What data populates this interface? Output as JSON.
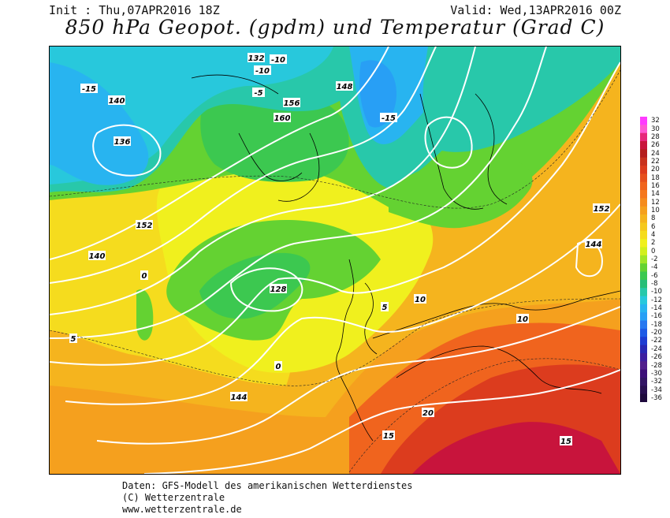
{
  "header": {
    "init": "Init : Thu,07APR2016 18Z",
    "valid": "Valid: Wed,13APR2016 00Z",
    "title": "850 hPa Geopot. (gpdm) und Temperatur (Grad C)"
  },
  "scale": {
    "labels": [
      "32",
      "30",
      "28",
      "26",
      "24",
      "22",
      "20",
      "18",
      "16",
      "14",
      "12",
      "10",
      "8",
      "6",
      "4",
      "2",
      "0",
      "-2",
      "-4",
      "-6",
      "-8",
      "-10",
      "-12",
      "-14",
      "-16",
      "-18",
      "-20",
      "-22",
      "-24",
      "-26",
      "-28",
      "-30",
      "-32",
      "-34",
      "-36"
    ],
    "colors": [
      "#ff3cff",
      "#ff5ad2",
      "#e6287a",
      "#c8143c",
      "#b41e1e",
      "#c8321e",
      "#dc3c1e",
      "#e6501e",
      "#f0641e",
      "#f5781e",
      "#f58c1e",
      "#f5a01e",
      "#f5b41e",
      "#f5c81e",
      "#f5dc1e",
      "#f0f01e",
      "#d2f01e",
      "#a0e628",
      "#64d232",
      "#3cc850",
      "#28be78",
      "#28c8aa",
      "#28c8dc",
      "#28b4f0",
      "#289ff5",
      "#2878f0",
      "#1e5ae6",
      "#1e3cd2",
      "#2828b4",
      "#3c1ea0",
      "#501e8c",
      "#3c0f78",
      "#321464",
      "#280f50",
      "#1e0a3c"
    ]
  },
  "contour_labels": [
    {
      "text": "-10",
      "fill": "#d2f01e",
      "color": "#000"
    },
    {
      "text": "132",
      "fill": "#d2f01e",
      "color": "#000"
    },
    {
      "text": "-5",
      "fill": "#d2f01e",
      "color": "#000"
    },
    {
      "text": "140",
      "fill": "#3cc850",
      "color": "#000"
    },
    {
      "text": "-15",
      "fill": "#28b4f0",
      "color": "#000"
    },
    {
      "text": "148",
      "fill": "#28c8aa",
      "color": "#000"
    },
    {
      "text": "156",
      "fill": "#28c8aa",
      "color": "#000"
    },
    {
      "text": "160",
      "fill": "#28c8aa",
      "color": "#000"
    },
    {
      "text": "152",
      "fill": "#f5c81e",
      "color": "#000"
    },
    {
      "text": "136",
      "fill": "#28c8dc",
      "color": "#000"
    },
    {
      "text": "128",
      "fill": "#f0f01e",
      "color": "#000"
    },
    {
      "text": "0",
      "fill": "#f0f01e",
      "color": "#000"
    },
    {
      "text": "5",
      "fill": "#f5c81e",
      "color": "#000"
    },
    {
      "text": "10",
      "fill": "#f5a01e",
      "color": "#000"
    },
    {
      "text": "15",
      "fill": "#f0641e",
      "color": "#000"
    },
    {
      "text": "20",
      "fill": "#dc3c1e",
      "color": "#000"
    },
    {
      "text": "144",
      "fill": "#f5c81e",
      "color": "#000"
    }
  ],
  "footer": {
    "line1": "Daten: GFS-Modell des amerikanischen Wetterdienstes",
    "line2": "(C) Wetterzentrale",
    "line3": "www.wetterzentrale.de"
  }
}
